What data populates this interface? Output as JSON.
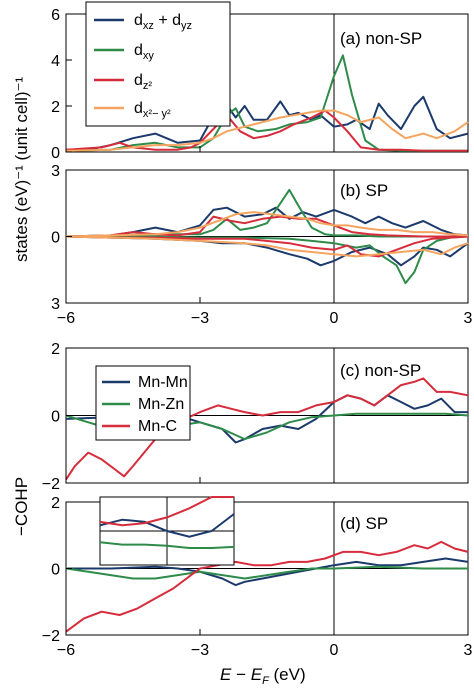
{
  "figure": {
    "ylabel_top": "states (eV)⁻¹ (unit cell)⁻¹",
    "ylabel_bottom": "−COHP",
    "xlabel": "E − E_F (eV)"
  },
  "chart_data": [
    {
      "type": "line",
      "panel": "a",
      "annotation": "(a) non-SP",
      "xlim": [
        -6,
        3
      ],
      "ylim": [
        0,
        6
      ],
      "xticks": [
        -6,
        -3,
        0,
        3
      ],
      "yticks": [
        0,
        2,
        4,
        6
      ],
      "ytick_labels": [
        "0",
        "2",
        "4",
        "6"
      ],
      "legend": "top-left",
      "series": [
        {
          "name": "d_xz + d_yz",
          "color": "#1b3a6b",
          "x": [
            -6,
            -5.5,
            -5,
            -4.5,
            -4,
            -3.5,
            -3,
            -2.8,
            -2.5,
            -2.2,
            -2,
            -1.8,
            -1.5,
            -1.2,
            -1,
            -0.8,
            -0.5,
            -0.3,
            0,
            0.3,
            0.5,
            0.8,
            1,
            1.2,
            1.5,
            1.8,
            2,
            2.3,
            2.6,
            3
          ],
          "y": [
            0.1,
            0.1,
            0.3,
            0.6,
            0.8,
            0.4,
            0.5,
            1.2,
            2.3,
            1.5,
            2.0,
            1.4,
            1.4,
            2.2,
            1.6,
            1.7,
            1.4,
            1.6,
            1.1,
            1.2,
            1.4,
            1.0,
            2.1,
            1.6,
            1.0,
            2.0,
            2.4,
            1.0,
            0.6,
            0.8
          ]
        },
        {
          "name": "d_xy",
          "color": "#2e8b4a",
          "x": [
            -6,
            -5,
            -4.5,
            -4,
            -3.5,
            -3,
            -2.7,
            -2.4,
            -2.2,
            -2,
            -1.7,
            -1.3,
            -1,
            -0.6,
            -0.3,
            0,
            0.2,
            0.4,
            0.7,
            1,
            1.5,
            2,
            2.5,
            3
          ],
          "y": [
            0.05,
            0.1,
            0.3,
            0.4,
            0.2,
            0.2,
            0.6,
            1.6,
            1.9,
            1.1,
            0.9,
            1.0,
            1.2,
            1.3,
            1.5,
            3.3,
            4.2,
            2.5,
            0.5,
            0.1,
            0.05,
            0.05,
            0.05,
            0.05
          ]
        },
        {
          "name": "d_z²",
          "color": "#d62c3b",
          "x": [
            -6,
            -5.2,
            -4.8,
            -4.5,
            -4,
            -3.5,
            -3.2,
            -3,
            -2.7,
            -2.4,
            -2.1,
            -1.8,
            -1.5,
            -1.2,
            -0.9,
            -0.5,
            -0.2,
            0,
            0.3,
            0.6,
            1,
            1.5,
            2,
            2.5,
            3
          ],
          "y": [
            0.1,
            0.2,
            0.4,
            0.2,
            0.1,
            0.1,
            0.2,
            0.4,
            1.0,
            1.6,
            0.9,
            0.6,
            0.7,
            0.9,
            1.2,
            1.5,
            1.8,
            1.5,
            0.9,
            0.2,
            0.1,
            0.1,
            0.05,
            0.05,
            0.05
          ]
        },
        {
          "name": "d_x²−y²",
          "color": "#f5a55f",
          "x": [
            -6,
            -5,
            -4.5,
            -4,
            -3.5,
            -3,
            -2.7,
            -2.4,
            -2,
            -1.6,
            -1.2,
            -0.9,
            -0.6,
            -0.3,
            0,
            0.3,
            0.6,
            1,
            1.3,
            1.6,
            2,
            2.3,
            2.7,
            3
          ],
          "y": [
            0.05,
            0.1,
            0.2,
            0.3,
            0.3,
            0.4,
            0.6,
            0.9,
            1.1,
            1.3,
            1.5,
            1.6,
            1.7,
            1.8,
            1.8,
            1.6,
            1.3,
            1.5,
            1.0,
            0.6,
            0.8,
            0.6,
            0.9,
            1.3
          ]
        }
      ]
    },
    {
      "type": "line",
      "panel": "b",
      "annotation": "(b) SP",
      "xlim": [
        -6,
        3
      ],
      "ylim": [
        -3,
        3
      ],
      "xticks": [
        -6,
        -3,
        0,
        3
      ],
      "yticks": [
        -3,
        0,
        3
      ],
      "ytick_labels": [
        "3",
        "0",
        "3"
      ],
      "xtick_labels": [
        "−6",
        "−3",
        "0",
        "3"
      ],
      "series": [
        {
          "name": "d_xz + d_yz up",
          "color": "#1b3a6b",
          "x": [
            -6,
            -5,
            -4.5,
            -4,
            -3.5,
            -3,
            -2.7,
            -2.4,
            -2,
            -1.6,
            -1.3,
            -1,
            -0.7,
            -0.4,
            0,
            0.4,
            0.7,
            1,
            1.3,
            1.6,
            2,
            2.4,
            2.7,
            3
          ],
          "y": [
            0,
            0.05,
            0.2,
            0.4,
            0.2,
            0.5,
            1.2,
            1.3,
            0.9,
            1.0,
            1.3,
            0.8,
            1.1,
            0.9,
            1.2,
            0.9,
            0.6,
            0.9,
            0.6,
            0.4,
            0.7,
            0.3,
            0.1,
            0.05
          ]
        },
        {
          "name": "d_xz + d_yz dn",
          "color": "#1b3a6b",
          "x": [
            -6,
            -5,
            -4,
            -3,
            -2.5,
            -2,
            -1.5,
            -1,
            -0.6,
            -0.3,
            0,
            0.4,
            0.8,
            1.2,
            1.5,
            1.8,
            2,
            2.3,
            2.6,
            3
          ],
          "y": [
            0,
            -0.05,
            -0.1,
            -0.2,
            -0.3,
            -0.3,
            -0.5,
            -0.8,
            -1.0,
            -1.3,
            -1.1,
            -0.7,
            -0.5,
            -0.8,
            -1.3,
            -0.9,
            -0.5,
            -0.6,
            -0.9,
            -0.3
          ]
        },
        {
          "name": "d_xy up",
          "color": "#2e8b4a",
          "x": [
            -6,
            -5,
            -4,
            -3,
            -2.7,
            -2.4,
            -2.1,
            -1.8,
            -1.5,
            -1.3,
            -1,
            -0.8,
            -0.5,
            -0.2,
            0,
            0.5,
            1,
            2,
            3
          ],
          "y": [
            0,
            0.05,
            0.1,
            0.1,
            0.3,
            0.8,
            0.3,
            0.4,
            0.6,
            1.2,
            2.1,
            1.4,
            0.4,
            0.1,
            0.05,
            0.05,
            0,
            0,
            0
          ]
        },
        {
          "name": "d_xy dn",
          "color": "#2e8b4a",
          "x": [
            -6,
            -4,
            -3,
            -2,
            -1,
            -0.5,
            0,
            0.5,
            0.8,
            1.1,
            1.4,
            1.6,
            1.8,
            2,
            2.3,
            2.6,
            3
          ],
          "y": [
            0,
            0,
            -0.05,
            -0.05,
            -0.1,
            -0.2,
            -0.3,
            -0.5,
            -0.4,
            -0.9,
            -1.3,
            -2.1,
            -1.6,
            -0.6,
            -0.2,
            -0.05,
            0
          ]
        },
        {
          "name": "d_z² up",
          "color": "#d62c3b",
          "x": [
            -6,
            -5,
            -4.5,
            -4,
            -3.5,
            -3,
            -2.7,
            -2.3,
            -2,
            -1.6,
            -1.2,
            -0.8,
            -0.4,
            0,
            0.4,
            0.8,
            1.2,
            2,
            3
          ],
          "y": [
            0,
            0.05,
            0.2,
            0.1,
            0.05,
            0.2,
            0.9,
            0.7,
            0.6,
            0.8,
            0.9,
            0.8,
            0.8,
            0.5,
            0.2,
            0.1,
            0.05,
            0,
            0
          ]
        },
        {
          "name": "d_z² dn",
          "color": "#d62c3b",
          "x": [
            -6,
            -5,
            -4,
            -3,
            -2,
            -1,
            -0.5,
            0,
            0.3,
            0.6,
            1,
            1.4,
            1.8,
            2.2,
            2.6,
            3
          ],
          "y": [
            0,
            -0.05,
            -0.05,
            -0.1,
            -0.1,
            -0.3,
            -0.5,
            -0.6,
            -0.4,
            -0.8,
            -0.9,
            -0.6,
            -0.3,
            -0.1,
            -0.05,
            0
          ]
        },
        {
          "name": "d_x²−y² up",
          "color": "#f5a55f",
          "x": [
            -6,
            -5,
            -4,
            -3.5,
            -3,
            -2.6,
            -2.2,
            -1.8,
            -1.4,
            -1,
            -0.6,
            -0.3,
            0,
            0.3,
            0.6,
            1,
            1.4,
            1.8,
            2.2,
            2.6,
            3
          ],
          "y": [
            0,
            0.05,
            0.1,
            0.2,
            0.4,
            0.7,
            1.0,
            1.1,
            1.0,
            0.9,
            0.8,
            0.6,
            0.5,
            0.5,
            0.4,
            0.3,
            0.3,
            0.2,
            0.2,
            0.1,
            0.05
          ]
        },
        {
          "name": "d_x²−y² dn",
          "color": "#f5a55f",
          "x": [
            -6,
            -5,
            -4,
            -3,
            -2,
            -1.5,
            -1,
            -0.5,
            0,
            0.5,
            1,
            1.5,
            2,
            2.4,
            2.7,
            3
          ],
          "y": [
            0,
            -0.05,
            -0.1,
            -0.2,
            -0.3,
            -0.4,
            -0.6,
            -0.7,
            -0.8,
            -0.9,
            -0.8,
            -0.7,
            -0.6,
            -0.8,
            -0.5,
            -0.3
          ]
        }
      ]
    },
    {
      "type": "line",
      "panel": "c",
      "annotation": "(c) non-SP",
      "xlim": [
        -6,
        3
      ],
      "ylim": [
        -2,
        2
      ],
      "xticks": [
        -6,
        -3,
        0,
        3
      ],
      "yticks": [
        -2,
        0,
        2
      ],
      "ytick_labels": [
        "−2",
        "0",
        "2"
      ],
      "legend": "top-left",
      "series": [
        {
          "name": "Mn-Mn",
          "color": "#1b3a6b",
          "x": [
            -6,
            -5,
            -4.5,
            -4,
            -3.5,
            -3,
            -2.5,
            -2.2,
            -2,
            -1.6,
            -1.2,
            -0.8,
            -0.4,
            0,
            0.3,
            0.6,
            0.9,
            1.2,
            1.5,
            1.8,
            2.1,
            2.4,
            2.7,
            3
          ],
          "y": [
            -0.1,
            -0.05,
            0,
            0.05,
            0,
            -0.2,
            -0.4,
            -0.8,
            -0.7,
            -0.4,
            -0.3,
            -0.4,
            -0.1,
            0.4,
            0.6,
            0.5,
            0.3,
            0.6,
            0.4,
            0.2,
            0.3,
            0.5,
            0.1,
            0.1
          ]
        },
        {
          "name": "Mn-Zn",
          "color": "#2e8b4a",
          "x": [
            -6,
            -5.5,
            -5,
            -4.5,
            -4,
            -3.5,
            -3,
            -2.5,
            -2,
            -1.5,
            -1,
            -0.5,
            0,
            0.5,
            1,
            1.5,
            2,
            2.5,
            3
          ],
          "y": [
            0,
            -0.2,
            -0.4,
            -0.6,
            -0.5,
            -0.3,
            -0.2,
            -0.4,
            -0.7,
            -0.5,
            -0.2,
            -0.05,
            0,
            0.05,
            0.05,
            0.05,
            0.05,
            0.05,
            0
          ]
        },
        {
          "name": "Mn-C",
          "color": "#d62c3b",
          "x": [
            -6,
            -5.8,
            -5.5,
            -5.2,
            -4.9,
            -4.7,
            -4.5,
            -4,
            -3.5,
            -3,
            -2.6,
            -2.3,
            -2,
            -1.6,
            -1.2,
            -0.8,
            -0.4,
            0,
            0.3,
            0.6,
            0.9,
            1.2,
            1.5,
            1.8,
            2,
            2.3,
            2.6,
            3
          ],
          "y": [
            -1.9,
            -1.5,
            -1.1,
            -1.3,
            -1.6,
            -1.8,
            -1.5,
            -0.7,
            -0.2,
            0.1,
            0.3,
            0.2,
            0.1,
            0,
            0.1,
            0.1,
            0.3,
            0.4,
            0.6,
            0.5,
            0.3,
            0.6,
            0.9,
            1.0,
            1.1,
            0.7,
            0.7,
            0.6
          ]
        }
      ]
    },
    {
      "type": "line",
      "panel": "d",
      "annotation": "(d) SP",
      "xlim": [
        -6,
        3
      ],
      "ylim": [
        -2,
        2
      ],
      "xticks": [
        -6,
        -3,
        0,
        3
      ],
      "yticks": [
        -2,
        0,
        2
      ],
      "ytick_labels": [
        "−2",
        "0",
        "2"
      ],
      "xtick_labels": [
        "−6",
        "−3",
        "0",
        "3"
      ],
      "series": [
        {
          "name": "Mn-Mn",
          "color": "#1b3a6b",
          "x": [
            -6,
            -5,
            -4,
            -3.5,
            -3,
            -2.5,
            -2.2,
            -2,
            -1.6,
            -1.2,
            -0.8,
            -0.4,
            0,
            0.5,
            1,
            1.5,
            2,
            2.5,
            3
          ],
          "y": [
            0,
            0,
            0.05,
            0,
            -0.1,
            -0.3,
            -0.5,
            -0.4,
            -0.3,
            -0.2,
            -0.1,
            0,
            0.1,
            0.2,
            0.1,
            0.1,
            0.2,
            0.3,
            0.2
          ]
        },
        {
          "name": "Mn-Zn",
          "color": "#2e8b4a",
          "x": [
            -6,
            -5.5,
            -5,
            -4.5,
            -4,
            -3.5,
            -3,
            -2.5,
            -2,
            -1.5,
            -1,
            -0.5,
            0,
            1,
            2,
            3
          ],
          "y": [
            0,
            -0.1,
            -0.2,
            -0.3,
            -0.3,
            -0.2,
            -0.1,
            -0.2,
            -0.3,
            -0.2,
            -0.1,
            0,
            0,
            0.05,
            0,
            0
          ]
        },
        {
          "name": "Mn-C",
          "color": "#d62c3b",
          "x": [
            -6,
            -5.6,
            -5.2,
            -4.8,
            -4.4,
            -4,
            -3.6,
            -3.2,
            -3,
            -2.6,
            -2.2,
            -1.8,
            -1.4,
            -1,
            -0.6,
            -0.2,
            0.2,
            0.6,
            1,
            1.4,
            1.8,
            2.1,
            2.4,
            2.7,
            3
          ],
          "y": [
            -1.9,
            -1.5,
            -1.3,
            -1.4,
            -1.2,
            -0.9,
            -0.6,
            -0.2,
            0,
            0.1,
            0.2,
            0.1,
            0.1,
            0.2,
            0.2,
            0.3,
            0.5,
            0.5,
            0.4,
            0.5,
            0.7,
            0.6,
            0.8,
            0.6,
            0.5
          ]
        }
      ]
    }
  ],
  "inset": {
    "xlim": [
      -0.6,
      0.6
    ],
    "ylim": [
      -0.3,
      0.3
    ],
    "series": [
      {
        "name": "Mn-Mn",
        "color": "#1b3a6b",
        "x": [
          -0.6,
          -0.4,
          -0.2,
          0,
          0.2,
          0.4,
          0.6
        ],
        "y": [
          0.05,
          0.1,
          0.08,
          0,
          -0.05,
          0,
          0.15
        ]
      },
      {
        "name": "Mn-Zn",
        "color": "#2e8b4a",
        "x": [
          -0.6,
          -0.4,
          -0.2,
          0,
          0.2,
          0.4,
          0.6
        ],
        "y": [
          -0.1,
          -0.12,
          -0.12,
          -0.13,
          -0.15,
          -0.15,
          -0.14
        ]
      },
      {
        "name": "Mn-C",
        "color": "#d62c3b",
        "x": [
          -0.6,
          -0.4,
          -0.2,
          0,
          0.2,
          0.4,
          0.6
        ],
        "y": [
          0.08,
          0.05,
          0.07,
          0.12,
          0.2,
          0.3,
          0.4
        ]
      }
    ]
  },
  "legend_top": [
    {
      "label": "d_xz + d_yz",
      "color": "#1b3a6b"
    },
    {
      "label": "d_xy",
      "color": "#2e8b4a"
    },
    {
      "label": "d_z²",
      "color": "#d62c3b"
    },
    {
      "label": "d_x²−y²",
      "color": "#f5a55f"
    }
  ],
  "legend_bottom": [
    {
      "label": "Mn-Mn",
      "color": "#1b3a6b"
    },
    {
      "label": "Mn-Zn",
      "color": "#2e8b4a"
    },
    {
      "label": "Mn-C",
      "color": "#d62c3b"
    }
  ]
}
